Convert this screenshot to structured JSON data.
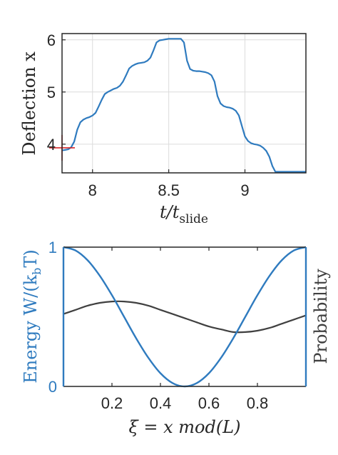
{
  "chart_data": [
    {
      "type": "line",
      "xlabel": "t/t_slide",
      "xlabel_main": "t/t",
      "xlabel_sub": "slide",
      "ylabel": "Deflection x",
      "xlim": [
        7.8,
        9.4
      ],
      "ylim": [
        3.45,
        6.12
      ],
      "xticks": [
        8,
        8.5,
        9
      ],
      "xtick_labels": [
        "8",
        "8.5",
        "9"
      ],
      "yticks": [
        4,
        5,
        6
      ],
      "ytick_labels": [
        "4",
        "5",
        "6"
      ],
      "grid": true,
      "series": [
        {
          "color": "#2f7bbf",
          "x": [
            7.8,
            7.82,
            7.84,
            7.86,
            7.88,
            7.9,
            7.92,
            7.94,
            7.96,
            7.98,
            8.0,
            8.02,
            8.04,
            8.06,
            8.08,
            8.1,
            8.12,
            8.14,
            8.16,
            8.18,
            8.2,
            8.22,
            8.24,
            8.26,
            8.28,
            8.3,
            8.32,
            8.34,
            8.36,
            8.38,
            8.4,
            8.42,
            8.44,
            8.46,
            8.48,
            8.5,
            8.52,
            8.54,
            8.56,
            8.58,
            8.6,
            8.62,
            8.64,
            8.66,
            8.68,
            8.7,
            8.72,
            8.74,
            8.76,
            8.78,
            8.8,
            8.82,
            8.84,
            8.86,
            8.88,
            8.9,
            8.92,
            8.94,
            8.96,
            8.98,
            9.0,
            9.02,
            9.04,
            9.06,
            9.08,
            9.1,
            9.12,
            9.14,
            9.16,
            9.18,
            9.2,
            9.22,
            9.24,
            9.26,
            9.28,
            9.3,
            9.32,
            9.34,
            9.36,
            9.38,
            9.4
          ],
          "y": [
            3.88,
            3.89,
            3.9,
            3.94,
            4.05,
            4.28,
            4.42,
            4.47,
            4.5,
            4.52,
            4.55,
            4.6,
            4.72,
            4.85,
            4.96,
            5.0,
            5.03,
            5.06,
            5.08,
            5.12,
            5.2,
            5.32,
            5.45,
            5.5,
            5.53,
            5.55,
            5.56,
            5.57,
            5.6,
            5.66,
            5.8,
            5.95,
            5.99,
            6.0,
            6.01,
            6.02,
            6.02,
            6.02,
            6.02,
            6.02,
            5.95,
            5.6,
            5.44,
            5.41,
            5.4,
            5.4,
            5.39,
            5.38,
            5.36,
            5.32,
            5.2,
            4.92,
            4.78,
            4.73,
            4.71,
            4.7,
            4.68,
            4.64,
            4.55,
            4.35,
            4.15,
            4.06,
            4.02,
            4.0,
            3.99,
            3.97,
            3.93,
            3.87,
            3.76,
            3.58,
            3.47,
            3.47,
            3.47,
            3.47,
            3.47,
            3.47,
            3.47,
            3.47,
            3.47,
            3.47,
            3.47
          ]
        }
      ],
      "marker": {
        "type": "plus",
        "x": 7.8,
        "y": 3.93,
        "color": "#d62728"
      }
    },
    {
      "type": "line",
      "xlabel": "ξ = x mod(L)",
      "ylabel_left": "Energy W/(k_bT)",
      "ylabel_left_main": "Energy W/(k",
      "ylabel_left_sub": "b",
      "ylabel_left_tail": "T)",
      "ylabel_right": "Probability",
      "xlim": [
        0,
        1
      ],
      "ylim_left": [
        0,
        1
      ],
      "xticks": [
        0.2,
        0.4,
        0.6,
        0.8
      ],
      "xtick_labels": [
        "0.2",
        "0.4",
        "0.6",
        "0.8"
      ],
      "yticks_left": [
        0,
        1
      ],
      "ytick_labels_left": [
        "0",
        "1"
      ],
      "grid": false,
      "series": [
        {
          "axis": "left",
          "color": "#2f7bbf",
          "x": [
            0.0,
            0.05,
            0.1,
            0.15,
            0.2,
            0.25,
            0.3,
            0.35,
            0.4,
            0.45,
            0.5,
            0.55,
            0.6,
            0.65,
            0.7,
            0.75,
            0.8,
            0.85,
            0.9,
            0.95,
            1.0
          ],
          "y": [
            1.0,
            0.976,
            0.905,
            0.794,
            0.655,
            0.5,
            0.345,
            0.206,
            0.095,
            0.024,
            0.0,
            0.024,
            0.095,
            0.206,
            0.345,
            0.5,
            0.655,
            0.794,
            0.905,
            0.976,
            1.0
          ]
        },
        {
          "axis": "right",
          "color": "#404040",
          "x": [
            0.0,
            0.05,
            0.1,
            0.15,
            0.2,
            0.25,
            0.3,
            0.35,
            0.4,
            0.45,
            0.5,
            0.55,
            0.6,
            0.65,
            0.7,
            0.75,
            0.8,
            0.85,
            0.9,
            0.95,
            1.0
          ],
          "y": [
            0.52,
            0.55,
            0.58,
            0.6,
            0.61,
            0.61,
            0.6,
            0.58,
            0.55,
            0.52,
            0.49,
            0.46,
            0.43,
            0.41,
            0.39,
            0.39,
            0.4,
            0.42,
            0.45,
            0.48,
            0.51
          ]
        }
      ]
    }
  ]
}
